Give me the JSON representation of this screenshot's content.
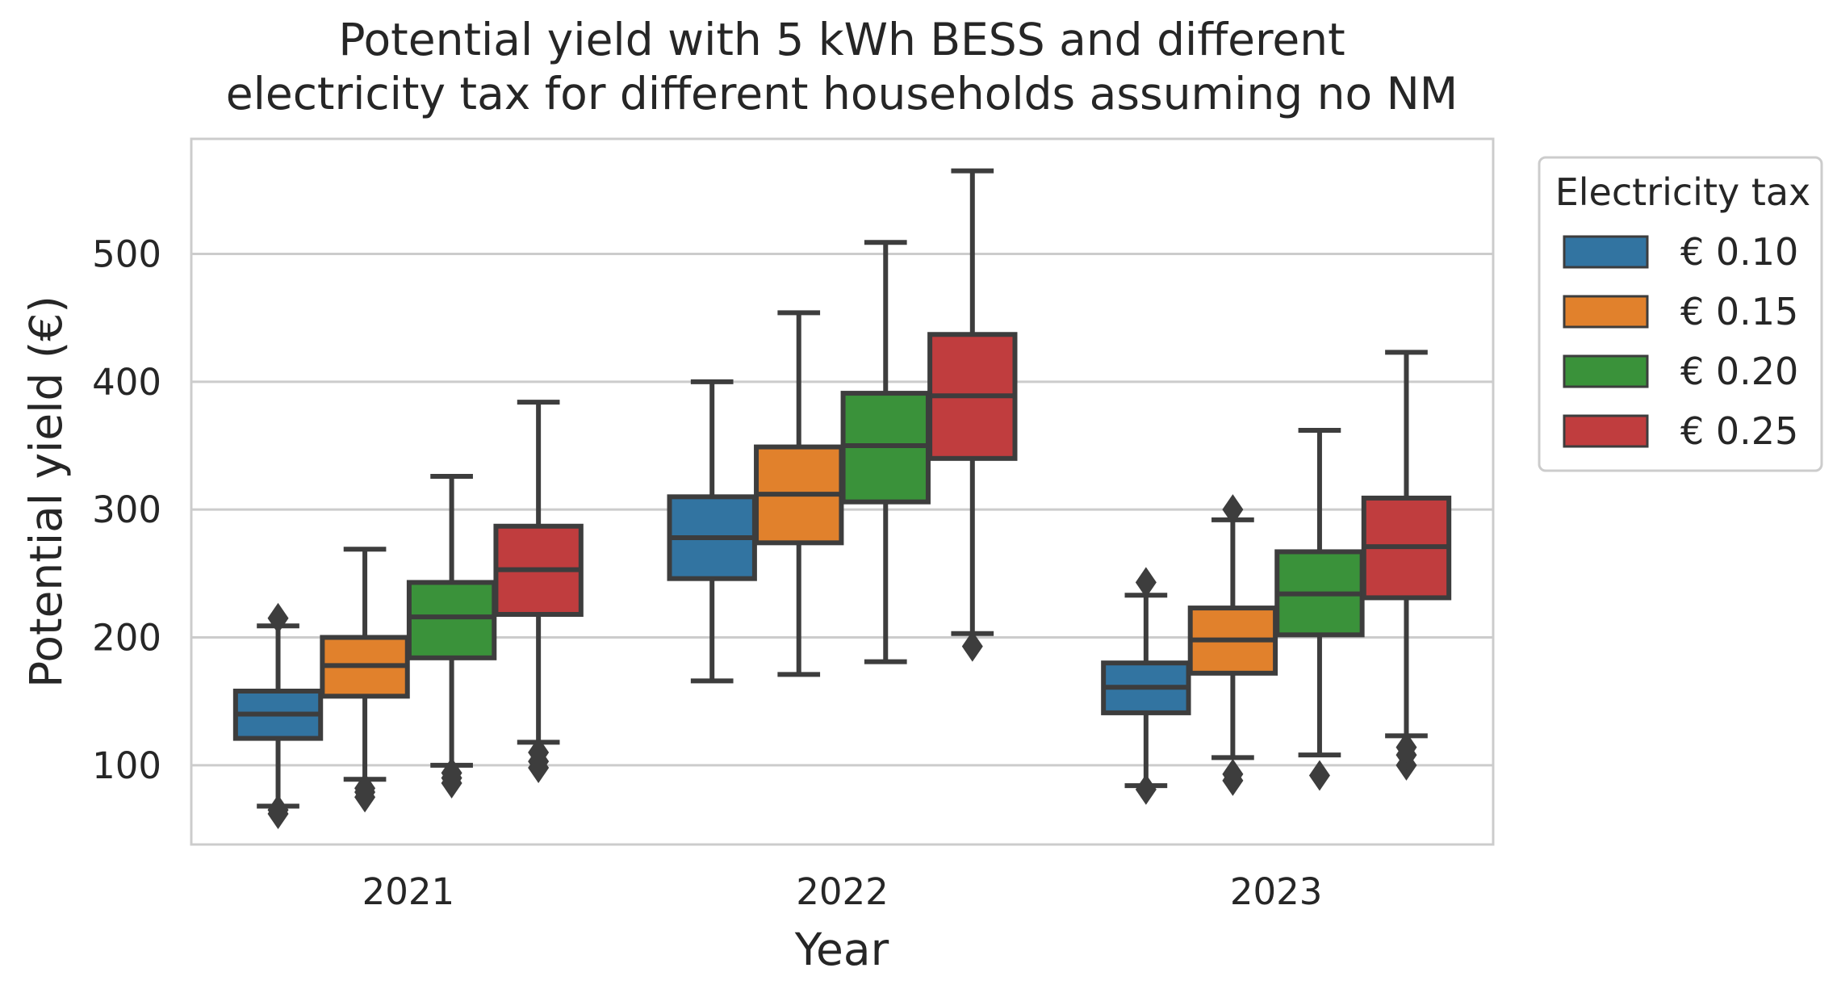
{
  "chart_data": {
    "type": "boxplot",
    "title_lines": [
      "Potential yield with 5 kWh BESS and different",
      "electricity tax for different households assuming no NM"
    ],
    "xlabel": "Year",
    "ylabel": "Potential yield (€)",
    "ylim": [
      38,
      590
    ],
    "yticks": [
      100,
      200,
      300,
      400,
      500
    ],
    "categories": [
      "2021",
      "2022",
      "2023"
    ],
    "legend": {
      "title": "Electricity tax",
      "position": "upper-right-outside"
    },
    "series": [
      {
        "name": "€ 0.10",
        "color": "#3274a1",
        "boxes": [
          {
            "whisker_low": 68,
            "q1": 121,
            "median": 140,
            "q3": 158,
            "whisker_high": 209,
            "outliers": [
              62,
              65,
              215
            ]
          },
          {
            "whisker_low": 166,
            "q1": 246,
            "median": 278,
            "q3": 310,
            "whisker_high": 400,
            "outliers": []
          },
          {
            "whisker_low": 84,
            "q1": 141,
            "median": 161,
            "q3": 180,
            "whisker_high": 233,
            "outliers": [
              81,
              243
            ]
          }
        ]
      },
      {
        "name": "€ 0.15",
        "color": "#e1812c",
        "boxes": [
          {
            "whisker_low": 89,
            "q1": 154,
            "median": 178,
            "q3": 200,
            "whisker_high": 269,
            "outliers": [
              75,
              79,
              82
            ]
          },
          {
            "whisker_low": 171,
            "q1": 274,
            "median": 312,
            "q3": 349,
            "whisker_high": 454,
            "outliers": []
          },
          {
            "whisker_low": 106,
            "q1": 172,
            "median": 198,
            "q3": 223,
            "whisker_high": 292,
            "outliers": [
              88,
              93,
              300
            ]
          }
        ]
      },
      {
        "name": "€ 0.20",
        "color": "#3a923a",
        "boxes": [
          {
            "whisker_low": 100,
            "q1": 184,
            "median": 216,
            "q3": 243,
            "whisker_high": 326,
            "outliers": [
              86,
              90,
              94
            ]
          },
          {
            "whisker_low": 181,
            "q1": 306,
            "median": 350,
            "q3": 391,
            "whisker_high": 509,
            "outliers": []
          },
          {
            "whisker_low": 108,
            "q1": 202,
            "median": 234,
            "q3": 267,
            "whisker_high": 362,
            "outliers": [
              92
            ]
          }
        ]
      },
      {
        "name": "€ 0.25",
        "color": "#c03d3e",
        "boxes": [
          {
            "whisker_low": 118,
            "q1": 218,
            "median": 253,
            "q3": 287,
            "whisker_high": 384,
            "outliers": [
              98,
              103,
              110
            ]
          },
          {
            "whisker_low": 203,
            "q1": 340,
            "median": 389,
            "q3": 437,
            "whisker_high": 565,
            "outliers": [
              193
            ]
          },
          {
            "whisker_low": 123,
            "q1": 231,
            "median": 271,
            "q3": 309,
            "whisker_high": 423,
            "outliers": [
              100,
              108,
              114
            ]
          }
        ]
      }
    ]
  }
}
